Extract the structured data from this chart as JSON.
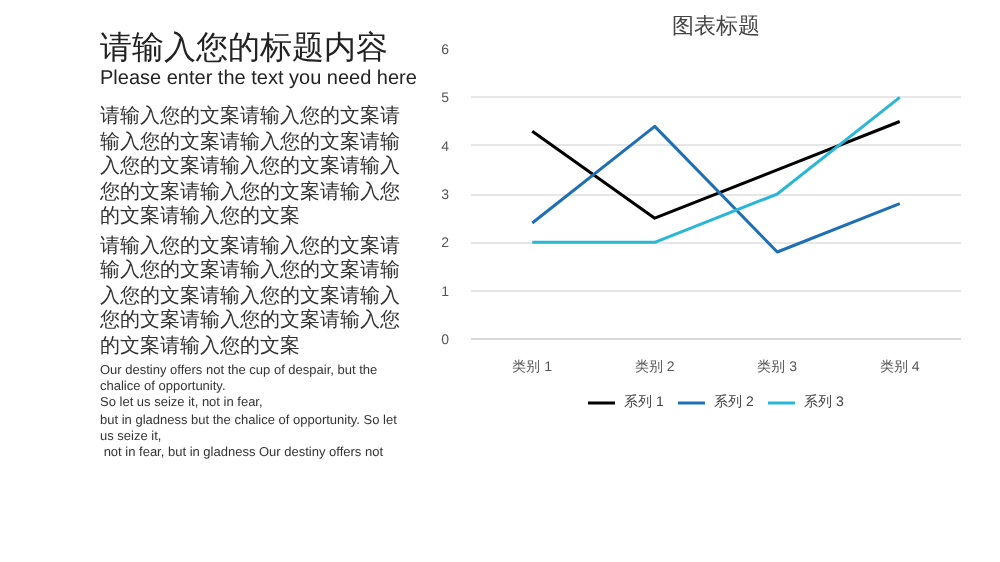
{
  "chart_data": [
    {
      "type": "other",
      "title": "请输入您的标题内容",
      "subtitle": "Please enter the text you need here",
      "annotations": [
        "请输入您的文案请输入您的文案请输入您的文案请输入您的文案请输入您的文案请输入您的文案请输入您的文案请输入您的文案请输入您的文案请输入您的文案",
        "请输入您的文案请输入您的文案请输入您的文案请输入您的文案请输入您的文案请输入您的文案请输入您的文案请输入您的文案请输入您的文案请输入您的文案",
        "Our destiny offers not the cup of despair, but the chalice of opportunity.\nSo let us seize it, not in fear,\nbut in gladness but the chalice of opportunity. So let us seize it,\n not in fear, but in gladness Our destiny offers not"
      ]
    },
    {
      "type": "line",
      "title": "图表标题",
      "categories": [
        "类别 1",
        "类别 2",
        "类别 3",
        "类别 4"
      ],
      "series": [
        {
          "name": "系列 1",
          "color": "#000000",
          "values": [
            4.3,
            2.5,
            3.5,
            4.5
          ]
        },
        {
          "name": "系列 2",
          "color": "#1f6fb4",
          "values": [
            2.4,
            4.4,
            1.8,
            2.8
          ]
        },
        {
          "name": "系列 3",
          "color": "#2ab7d6",
          "values": [
            2,
            2,
            3,
            5
          ]
        }
      ],
      "ylim": [
        0,
        6
      ],
      "yticks": [
        0,
        1,
        2,
        3,
        4,
        5,
        6
      ],
      "grid": "y",
      "legend": "bottom",
      "marker": "none",
      "line_style": "solid"
    }
  ]
}
